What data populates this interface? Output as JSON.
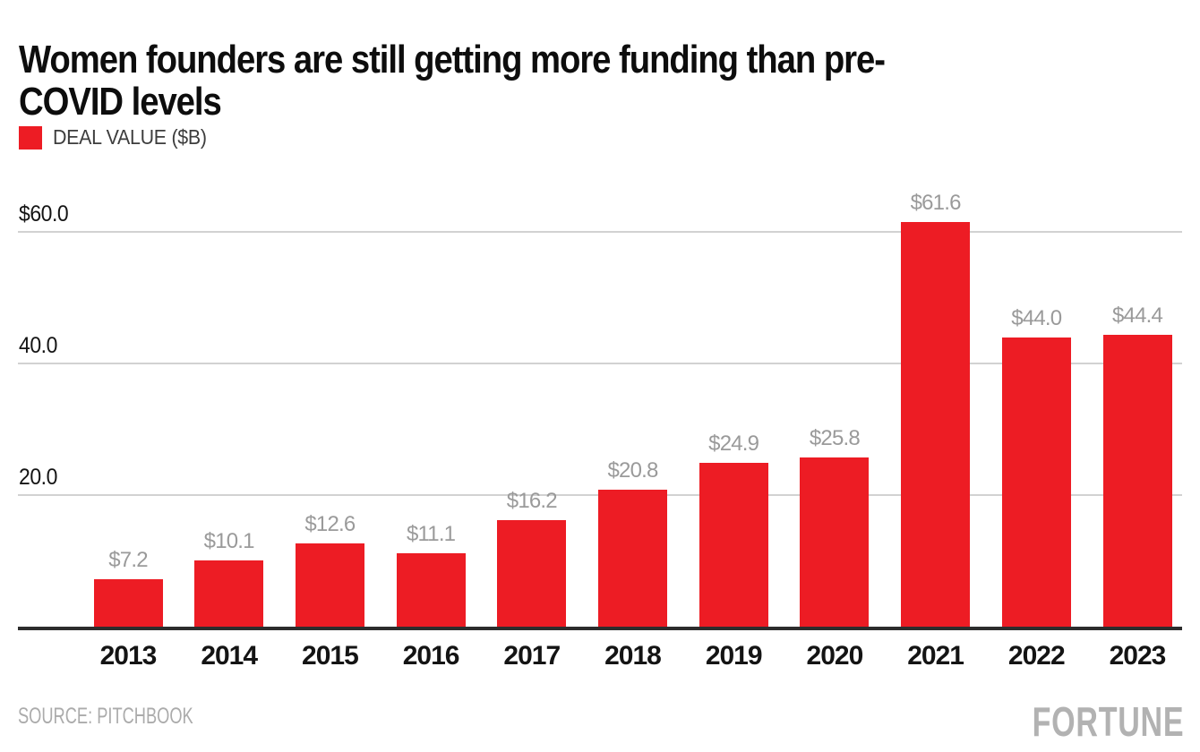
{
  "header": {
    "title_lines": [
      "Women founders are still getting more funding than pre-",
      "COVID levels"
    ]
  },
  "legend": {
    "swatch_color": "#ED1C24",
    "label": "DEAL VALUE ($B)"
  },
  "chart_data": {
    "type": "bar",
    "title": "Women founders are still getting more funding than pre-COVID levels",
    "legend": "DEAL VALUE ($B)",
    "categories": [
      "2013",
      "2014",
      "2015",
      "2016",
      "2017",
      "2018",
      "2019",
      "2020",
      "2021",
      "2022",
      "2023"
    ],
    "values": [
      7.2,
      10.1,
      12.6,
      11.1,
      16.2,
      20.8,
      24.9,
      25.8,
      61.6,
      44.0,
      44.4
    ],
    "value_labels": [
      "$7.2",
      "$10.1",
      "$12.6",
      "$11.1",
      "$16.2",
      "$20.8",
      "$24.9",
      "$25.8",
      "$61.6",
      "$44.0",
      "$44.4"
    ],
    "y_ticks": [
      {
        "value": 20,
        "label": "20.0"
      },
      {
        "value": 40,
        "label": "40.0"
      },
      {
        "value": 60,
        "label": "$60.0"
      }
    ],
    "ylim": [
      0,
      64
    ],
    "grid": true,
    "legend_position": "top-left",
    "bar_color": "#ED1C24",
    "grid_color": "#d2d2d2",
    "value_label_color": "#9a9a9a"
  },
  "footer": {
    "source": "SOURCE: PITCHBOOK",
    "brand": "FORTUNE"
  }
}
